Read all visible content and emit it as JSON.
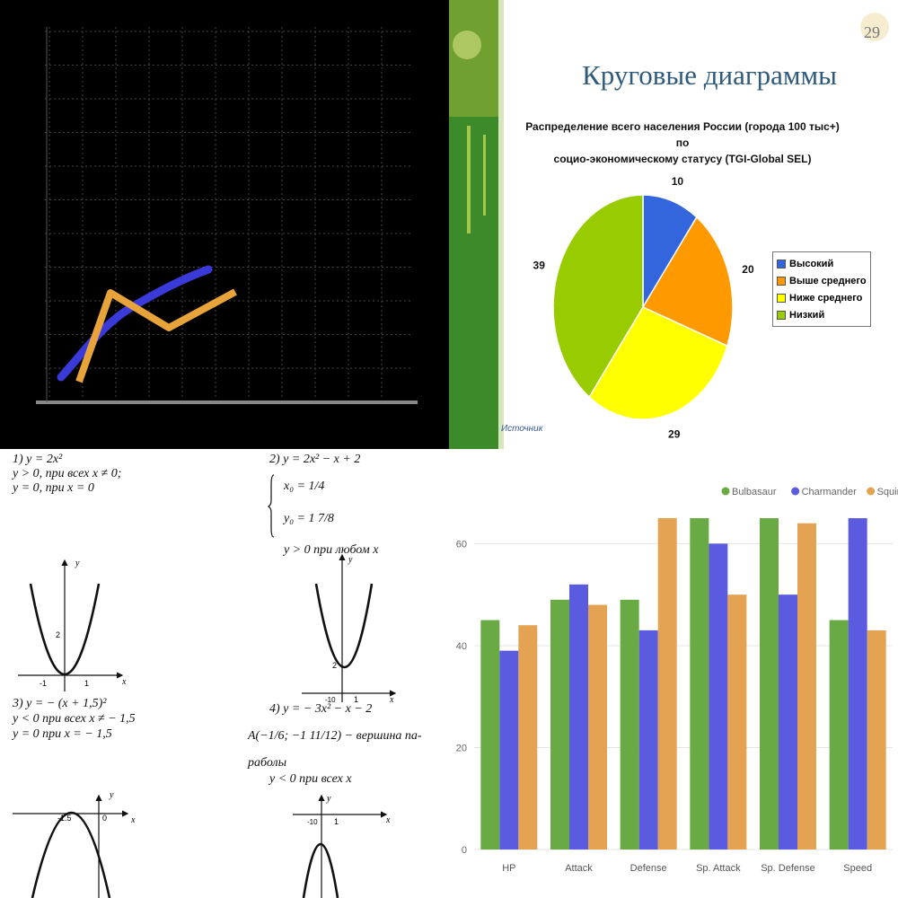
{
  "line_chart": {
    "series_colors": {
      "blue": "#3a3ad8",
      "orange": "#e8a33a"
    },
    "background": "#000000",
    "grid_color": "#444444"
  },
  "pie_slide": {
    "title": "Круговые диаграммы",
    "slide_number": "29",
    "chart_title_line1": "Распределение всего населения России (города 100 тыс+) по",
    "chart_title_line2": "социо-экономическому статусу (TGI-Global SEL)",
    "source": "Источник"
  },
  "math_page": {
    "ex1_title": "1) y = 2x²",
    "ex1_line1": "y > 0, при всех x ≠ 0;",
    "ex1_line2": "y = 0, при x = 0",
    "ex2_title": "2) y = 2x² − x + 2",
    "ex2_x0": "x₀ = 1/4",
    "ex2_y0": "y₀ = 1 7/8",
    "ex2_line": "y > 0 при любом x",
    "ex3_title": "3) y = − (x + 1,5)²",
    "ex3_line1": "y < 0 при всех x ≠ − 1,5",
    "ex3_line2": "y = 0 при x = − 1,5",
    "ex4_title": "4) y = − 3x² − x − 2",
    "ex4_line1": "A(−1/6; −1 11/12) − вершина па-",
    "ex4_line2": "раболы",
    "ex4_line3": "y < 0 при всех x",
    "tick_labels": {
      "g1_minus1": "-1",
      "g1_1": "1",
      "g1_2": "2",
      "g2_2": "2",
      "g2_neg": "-10",
      "g2_1": "1",
      "g3_vertex": "-1.5",
      "g3_0": "0",
      "g4_neg": "-10",
      "g4_1": "1"
    },
    "axis_labels": {
      "x": "x",
      "y": "y"
    }
  },
  "chart_data": [
    {
      "type": "pie",
      "title": "Распределение всего населения России (города 100 тыс+) по социо-экономическому статусу (TGI-Global SEL)",
      "categories": [
        "Высокий",
        "Выше среднего",
        "Ниже среднего",
        "Низкий"
      ],
      "values": [
        10,
        20,
        29,
        39
      ],
      "colors": [
        "#3366dd",
        "#ff9900",
        "#ffff00",
        "#99cc00"
      ],
      "legend": "right"
    },
    {
      "type": "bar",
      "categories": [
        "HP",
        "Attack",
        "Defense",
        "Sp. Attack",
        "Sp. Defense",
        "Speed"
      ],
      "series": [
        {
          "name": "Bulbasaur",
          "values": [
            45,
            49,
            49,
            65,
            65,
            45
          ],
          "color": "#6aaa45"
        },
        {
          "name": "Charmander",
          "values": [
            39,
            52,
            43,
            60,
            50,
            65
          ],
          "color": "#5b5be0"
        },
        {
          "name": "Squirtle",
          "values": [
            44,
            48,
            65,
            50,
            64,
            43
          ],
          "color": "#e3a352"
        }
      ],
      "yticks": [
        "0",
        "20",
        "40",
        "60"
      ],
      "ylim": [
        0,
        68
      ],
      "grid": true,
      "legend": "top-right"
    }
  ]
}
